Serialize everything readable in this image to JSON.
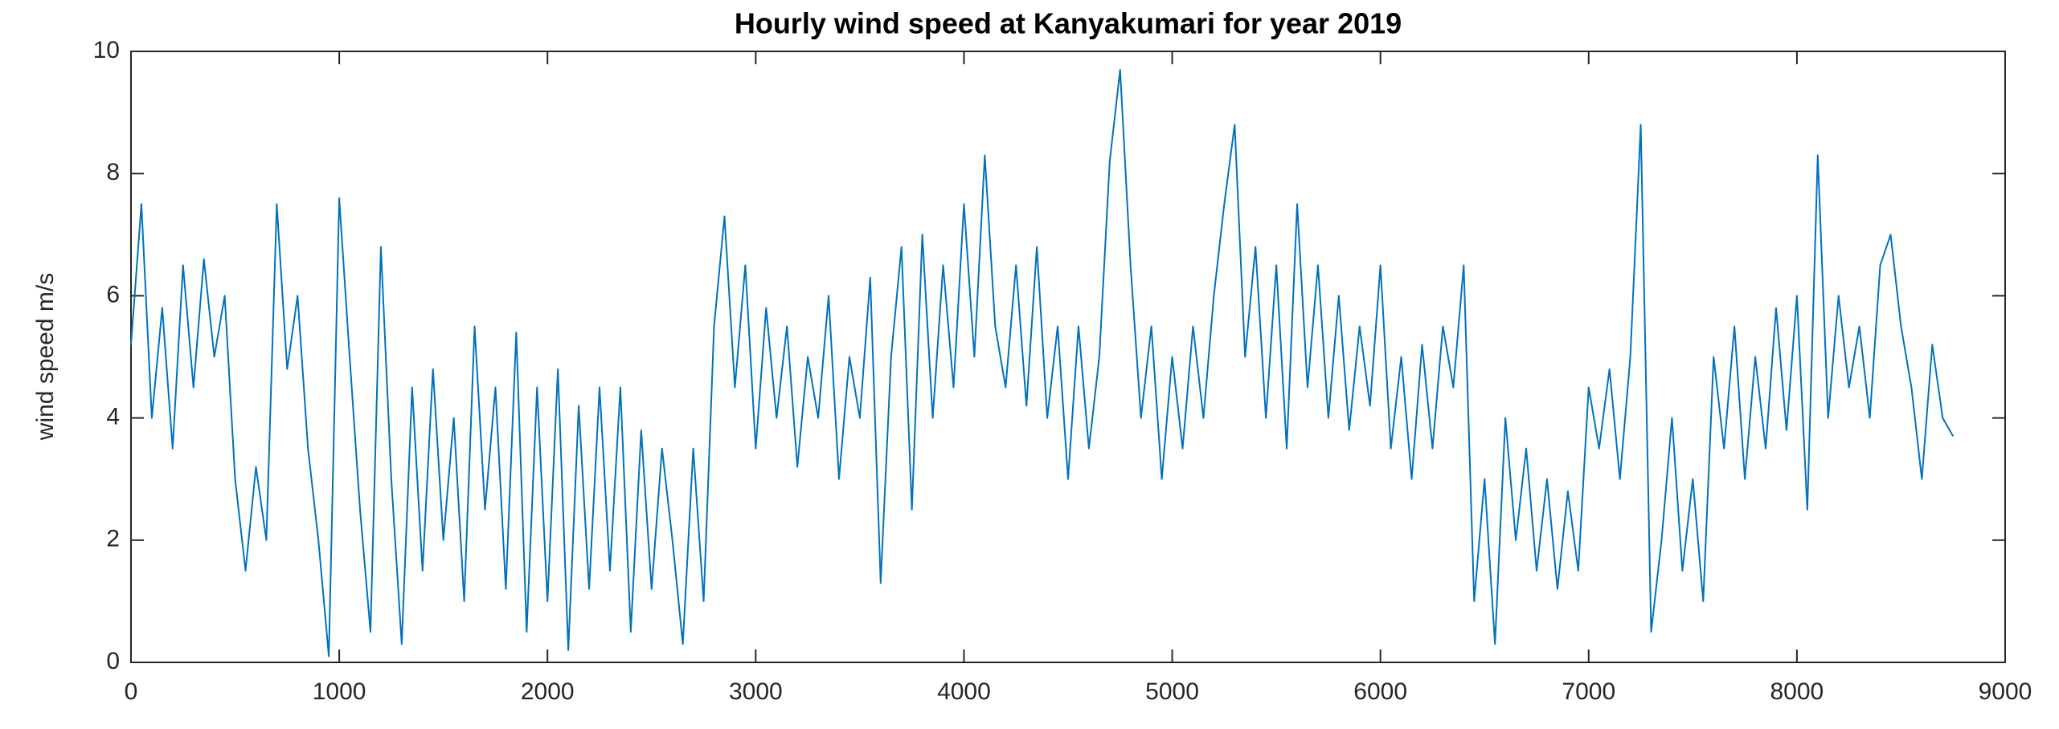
{
  "chart_data": {
    "type": "line",
    "title": "Hourly wind speed at Kanyakumari for year 2019",
    "y_label": "wind speed m/s",
    "x": [
      0,
      50,
      100,
      150,
      200,
      250,
      300,
      350,
      400,
      450,
      500,
      550,
      600,
      650,
      700,
      750,
      800,
      850,
      900,
      950,
      1000,
      1050,
      1100,
      1150,
      1200,
      1250,
      1300,
      1350,
      1400,
      1450,
      1500,
      1550,
      1600,
      1650,
      1700,
      1750,
      1800,
      1850,
      1900,
      1950,
      2000,
      2050,
      2100,
      2150,
      2200,
      2250,
      2300,
      2350,
      2400,
      2450,
      2500,
      2550,
      2600,
      2650,
      2700,
      2750,
      2800,
      2850,
      2900,
      2950,
      3000,
      3050,
      3100,
      3150,
      3200,
      3250,
      3300,
      3350,
      3400,
      3450,
      3500,
      3550,
      3600,
      3650,
      3700,
      3750,
      3800,
      3850,
      3900,
      3950,
      4000,
      4050,
      4100,
      4150,
      4200,
      4250,
      4300,
      4350,
      4400,
      4450,
      4500,
      4550,
      4600,
      4650,
      4700,
      4750,
      4800,
      4850,
      4900,
      4950,
      5000,
      5050,
      5100,
      5150,
      5200,
      5250,
      5300,
      5350,
      5400,
      5450,
      5500,
      5550,
      5600,
      5650,
      5700,
      5750,
      5800,
      5850,
      5900,
      5950,
      6000,
      6050,
      6100,
      6150,
      6200,
      6250,
      6300,
      6350,
      6400,
      6450,
      6500,
      6550,
      6600,
      6650,
      6700,
      6750,
      6800,
      6850,
      6900,
      6950,
      7000,
      7050,
      7100,
      7150,
      7200,
      7250,
      7300,
      7350,
      7400,
      7450,
      7500,
      7550,
      7600,
      7650,
      7700,
      7750,
      7800,
      7850,
      7900,
      7950,
      8000,
      8050,
      8100,
      8150,
      8200,
      8250,
      8300,
      8350,
      8400,
      8450,
      8500,
      8550,
      8600,
      8650,
      8700,
      8750
    ],
    "series": [
      {
        "color": "#0072bd",
        "values": [
          5.2,
          7.5,
          4.0,
          5.8,
          3.5,
          6.5,
          4.5,
          6.6,
          5.0,
          6.0,
          3.0,
          1.5,
          3.2,
          2.0,
          7.5,
          4.8,
          6.0,
          3.5,
          2.0,
          0.1,
          7.6,
          5.0,
          2.5,
          0.5,
          6.8,
          3.0,
          0.3,
          4.5,
          1.5,
          4.8,
          2.0,
          4.0,
          1.0,
          5.5,
          2.5,
          4.5,
          1.2,
          5.4,
          0.5,
          4.5,
          1.0,
          4.8,
          0.2,
          4.2,
          1.2,
          4.5,
          1.5,
          4.5,
          0.5,
          3.8,
          1.2,
          3.5,
          2.0,
          0.3,
          3.5,
          1.0,
          5.5,
          7.3,
          4.5,
          6.5,
          3.5,
          5.8,
          4.0,
          5.5,
          3.2,
          5.0,
          4.0,
          6.0,
          3.0,
          5.0,
          4.0,
          6.3,
          1.3,
          5.0,
          6.8,
          2.5,
          7.0,
          4.0,
          6.5,
          4.5,
          7.5,
          5.0,
          8.3,
          5.5,
          4.5,
          6.5,
          4.2,
          6.8,
          4.0,
          5.5,
          3.0,
          5.5,
          3.5,
          5.0,
          8.2,
          9.7,
          6.5,
          4.0,
          5.5,
          3.0,
          5.0,
          3.5,
          5.5,
          4.0,
          6.0,
          7.5,
          8.8,
          5.0,
          6.8,
          4.0,
          6.5,
          3.5,
          7.5,
          4.5,
          6.5,
          4.0,
          6.0,
          3.8,
          5.5,
          4.2,
          6.5,
          3.5,
          5.0,
          3.0,
          5.2,
          3.5,
          5.5,
          4.5,
          6.5,
          1.0,
          3.0,
          0.3,
          4.0,
          2.0,
          3.5,
          1.5,
          3.0,
          1.2,
          2.8,
          1.5,
          4.5,
          3.5,
          4.8,
          3.0,
          5.0,
          8.8,
          0.5,
          2.0,
          4.0,
          1.5,
          3.0,
          1.0,
          5.0,
          3.5,
          5.5,
          3.0,
          5.0,
          3.5,
          5.8,
          3.8,
          6.0,
          2.5,
          8.3,
          4.0,
          6.0,
          4.5,
          5.5,
          4.0,
          6.5,
          7.0,
          5.5,
          4.5,
          3.0,
          5.2,
          4.0,
          3.7
        ]
      }
    ],
    "xlim": [
      0,
      9000
    ],
    "xticks": [
      0,
      1000,
      2000,
      3000,
      4000,
      5000,
      6000,
      7000,
      8000,
      9000
    ],
    "ylim": [
      0,
      10
    ],
    "yticks": [
      0,
      2,
      4,
      6,
      8,
      10
    ]
  }
}
